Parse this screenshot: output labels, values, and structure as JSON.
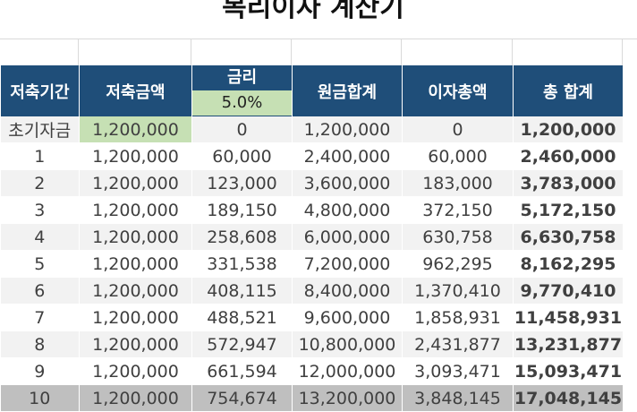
{
  "title": "복리이자 계산기",
  "rate": "5.0%",
  "headers": {
    "period": "저축기간",
    "deposit": "저축금액",
    "rate": "금리",
    "principal": "원금합계",
    "interest": "이자총액",
    "total": "총 합계"
  },
  "rows": [
    {
      "period": "초기자금",
      "deposit": "1,200,000",
      "rate_interest": "0",
      "principal": "1,200,000",
      "interest": "0",
      "total": "1,200,000"
    },
    {
      "period": "1",
      "deposit": "1,200,000",
      "rate_interest": "60,000",
      "principal": "2,400,000",
      "interest": "60,000",
      "total": "2,460,000"
    },
    {
      "period": "2",
      "deposit": "1,200,000",
      "rate_interest": "123,000",
      "principal": "3,600,000",
      "interest": "183,000",
      "total": "3,783,000"
    },
    {
      "period": "3",
      "deposit": "1,200,000",
      "rate_interest": "189,150",
      "principal": "4,800,000",
      "interest": "372,150",
      "total": "5,172,150"
    },
    {
      "period": "4",
      "deposit": "1,200,000",
      "rate_interest": "258,608",
      "principal": "6,000,000",
      "interest": "630,758",
      "total": "6,630,758"
    },
    {
      "period": "5",
      "deposit": "1,200,000",
      "rate_interest": "331,538",
      "principal": "7,200,000",
      "interest": "962,295",
      "total": "8,162,295"
    },
    {
      "period": "6",
      "deposit": "1,200,000",
      "rate_interest": "408,115",
      "principal": "8,400,000",
      "interest": "1,370,410",
      "total": "9,770,410"
    },
    {
      "period": "7",
      "deposit": "1,200,000",
      "rate_interest": "488,521",
      "principal": "9,600,000",
      "interest": "1,858,931",
      "total": "11,458,931"
    },
    {
      "period": "8",
      "deposit": "1,200,000",
      "rate_interest": "572,947",
      "principal": "10,800,000",
      "interest": "2,431,877",
      "total": "13,231,877"
    },
    {
      "period": "9",
      "deposit": "1,200,000",
      "rate_interest": "661,594",
      "principal": "12,000,000",
      "interest": "3,093,471",
      "total": "15,093,471"
    },
    {
      "period": "10",
      "deposit": "1,200,000",
      "rate_interest": "754,674",
      "principal": "13,200,000",
      "interest": "3,848,145",
      "total": "17,048,145"
    }
  ],
  "colors": {
    "header_bg": "#1f4e79",
    "input_bg": "#c6e0b4",
    "band_bg": "#f2f2f2",
    "last_row_bg": "#bfbfbf"
  }
}
